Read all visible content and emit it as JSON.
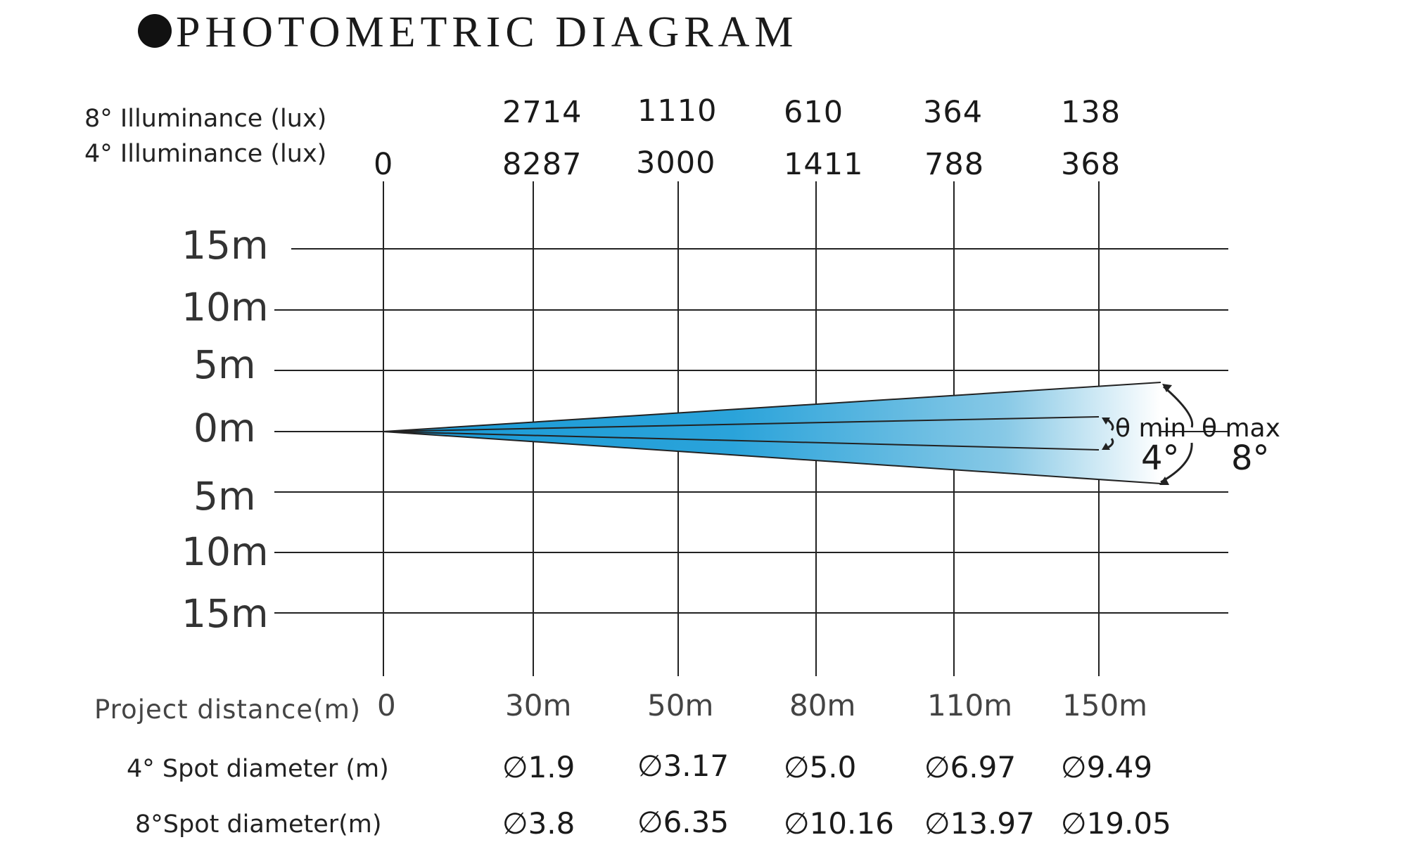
{
  "title": "PHOTOMETRIC DIAGRAM",
  "illuminance_8_label": "8° Illuminance (lux)",
  "illuminance_4_label": "4° Illuminance (lux)",
  "illuminance_8": [
    "2714",
    "1110",
    "610",
    "364",
    "138"
  ],
  "illuminance_4": [
    "0",
    "8287",
    "3000",
    "1411",
    "788",
    "368"
  ],
  "y_labels": [
    "15m",
    "10m",
    "5m",
    "0m",
    "5m",
    "10m",
    "15m"
  ],
  "x_title": "Project distance(m)",
  "x_labels": [
    "0",
    "30m",
    "50m",
    "80m",
    "110m",
    "150m"
  ],
  "spot4_label": "4° Spot diameter (m)",
  "spot8_label": "8°Spot diameter(m)",
  "spot4": [
    "∅1.9",
    "∅3.17",
    "∅5.0",
    "∅6.97",
    "∅9.49"
  ],
  "spot8": [
    "∅3.8",
    "∅6.35",
    "∅10.16",
    "∅13.97",
    "∅19.05"
  ],
  "theta_min": "θ min",
  "theta_max": "θ max",
  "angle_min": "4°",
  "angle_max": "8°",
  "colors": {
    "beam_dark": "#1a9ad6",
    "beam_light": "#ffffff",
    "line": "#222222"
  }
}
